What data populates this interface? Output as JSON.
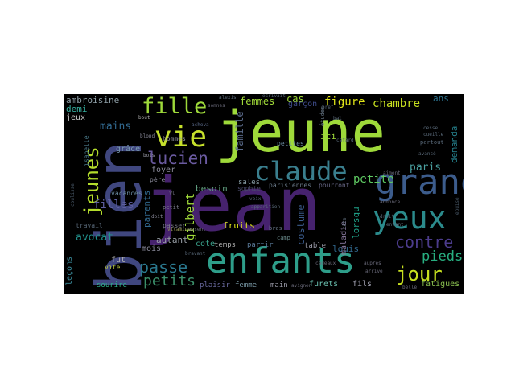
{
  "wordcloud": {
    "words": [
      {
        "text": "jeune",
        "color": "#9ed93a"
      },
      {
        "text": "jean",
        "color": "#46226e"
      },
      {
        "text": "bien",
        "color": "#40477f"
      },
      {
        "text": "enfants",
        "color": "#2e9e8a"
      },
      {
        "text": "grand",
        "color": "#3c5c8c"
      },
      {
        "text": "yeux",
        "color": "#2b8b8c"
      },
      {
        "text": "vie",
        "color": "#c6e02c"
      },
      {
        "text": "claude",
        "color": "#3a7f8e"
      },
      {
        "text": "fille",
        "color": "#9ed93a"
      },
      {
        "text": "jour",
        "color": "#c7e020"
      },
      {
        "text": "lucien",
        "color": "#6a5aa0"
      },
      {
        "text": "jeunes",
        "color": "#b4dd2c"
      },
      {
        "text": "contre",
        "color": "#4c3c8c"
      },
      {
        "text": "petite",
        "color": "#5ec962"
      },
      {
        "text": "passe",
        "color": "#2a788e"
      },
      {
        "text": "petits",
        "color": "#3b8f6a"
      },
      {
        "text": "pieds",
        "color": "#28ae80"
      },
      {
        "text": "chambre",
        "color": "#c7e020"
      },
      {
        "text": "figure",
        "color": "#e0e418"
      },
      {
        "text": "femmes",
        "color": "#a0da39"
      },
      {
        "text": "mains",
        "color": "#31688e"
      },
      {
        "text": "filles",
        "color": "#5e5fa0"
      },
      {
        "text": "avocat",
        "color": "#21918c"
      },
      {
        "text": "gilbert",
        "color": "#a0da39"
      },
      {
        "text": "paris",
        "color": "#4aa0a0"
      },
      {
        "text": "demanda",
        "color": "#26828e"
      },
      {
        "text": "ambroisine",
        "color": "#8fa0a8"
      },
      {
        "text": "demi",
        "color": "#37b0a0"
      },
      {
        "text": "jeux",
        "color": "#d0d0d0"
      },
      {
        "text": "cas",
        "color": "#a0da39"
      },
      {
        "text": "garçon",
        "color": "#3e4c8a"
      },
      {
        "text": "ans",
        "color": "#2c728e"
      },
      {
        "text": "famille",
        "color": "#5a6a8a"
      },
      {
        "text": "ici",
        "color": "#9ed93a"
      },
      {
        "text": "lorsqu",
        "color": "#1fa188"
      },
      {
        "text": "costume",
        "color": "#3a5a8a"
      },
      {
        "text": "louis",
        "color": "#31688e"
      },
      {
        "text": "besoin",
        "color": "#62a080"
      },
      {
        "text": "parents",
        "color": "#31688e"
      },
      {
        "text": "autant",
        "color": "#9aa0a8"
      },
      {
        "text": "fruits",
        "color": "#dde318"
      },
      {
        "text": "cote",
        "color": "#3aa08a"
      },
      {
        "text": "mois",
        "color": "#8a8a9a"
      },
      {
        "text": "fut",
        "color": "#b0b0b0"
      },
      {
        "text": "vite",
        "color": "#c0d040"
      },
      {
        "text": "leçons",
        "color": "#3a8a9a"
      },
      {
        "text": "sourire",
        "color": "#2db08a"
      },
      {
        "text": "plaisir",
        "color": "#6a6aa0"
      },
      {
        "text": "femme",
        "color": "#7a9aa8"
      },
      {
        "text": "main",
        "color": "#9a9aa8"
      },
      {
        "text": "furets",
        "color": "#6ac0b0"
      },
      {
        "text": "fils",
        "color": "#a0a0b0"
      },
      {
        "text": "fatigues",
        "color": "#8ac050"
      },
      {
        "text": "maladie",
        "color": "#8a7aa0"
      },
      {
        "text": "table",
        "color": "#9a9aa8"
      },
      {
        "text": "temps",
        "color": "#aaaaaa"
      },
      {
        "text": "partir",
        "color": "#5a7a9a"
      },
      {
        "text": "foyer",
        "color": "#8a8a9a"
      },
      {
        "text": "grâce",
        "color": "#7a9ab0"
      },
      {
        "text": "hommes",
        "color": "#9a9aa8"
      },
      {
        "text": "petites",
        "color": "#6a8aa0"
      },
      {
        "text": "sales",
        "color": "#8aa0a8"
      },
      {
        "text": "isabelle",
        "color": "#4a7a8a"
      },
      {
        "text": "père",
        "color": "#8a8a9a"
      },
      {
        "text": "vacances",
        "color": "#6a8aa0"
      },
      {
        "text": "petit",
        "color": "#7a7a8a"
      },
      {
        "text": "travail",
        "color": "#5a6a7a"
      },
      {
        "text": "passer",
        "color": "#7a7a8a"
      },
      {
        "text": "parisiennes",
        "color": "#6a7a8a"
      },
      {
        "text": "pourront",
        "color": "#6a6a8a"
      },
      {
        "text": "sophie",
        "color": "#4a4a6a"
      },
      {
        "text": "camp",
        "color": "#6a8a8a"
      },
      {
        "text": "apparition",
        "color": "#5a6a7a"
      },
      {
        "text": "bras",
        "color": "#6a7a8a"
      },
      {
        "text": "vitamines",
        "color": "#9a9a5a"
      },
      {
        "text": "absent",
        "color": "#6a6a7a"
      },
      {
        "text": "avignon",
        "color": "#6a6a7a"
      },
      {
        "text": "somnes",
        "color": "#6a6a7a"
      },
      {
        "text": "acheva",
        "color": "#5a6a8a"
      },
      {
        "text": "blond",
        "color": "#8a8a9a"
      },
      {
        "text": "bois",
        "color": "#9a9aa8"
      },
      {
        "text": "bout",
        "color": "#aaaaaa"
      },
      {
        "text": "doit",
        "color": "#8a8a9a"
      },
      {
        "text": "études",
        "color": "#6a7a8a"
      },
      {
        "text": "cafard",
        "color": "#5a6a7a"
      },
      {
        "text": "partout",
        "color": "#5a6a7a"
      },
      {
        "text": "tête",
        "color": "#6a7a8a"
      },
      {
        "text": "auprès",
        "color": "#6a6a7a"
      },
      {
        "text": "arrive",
        "color": "#6a6a7a"
      },
      {
        "text": "annonce",
        "color": "#6a6a7a"
      },
      {
        "text": "alexis",
        "color": "#5a6a7a"
      },
      {
        "text": "écrivait",
        "color": "#5a6a7a"
      },
      {
        "text": "belle",
        "color": "#6a6a7a"
      },
      {
        "text": "bref",
        "color": "#5a6a7a"
      },
      {
        "text": "bal",
        "color": "#5a6a7a"
      },
      {
        "text": "avancé",
        "color": "#5a6a7a"
      },
      {
        "text": "voix",
        "color": "#5a6a7a"
      },
      {
        "text": "aiment",
        "color": "#6a6a7a"
      },
      {
        "text": "cesse",
        "color": "#5a6a7a"
      },
      {
        "text": "cueille",
        "color": "#5a6a7a"
      },
      {
        "text": "vu",
        "color": "#6a6a7a"
      },
      {
        "text": "droit",
        "color": "#5a6a7a"
      },
      {
        "text": "enfant",
        "color": "#5a6a7a"
      },
      {
        "text": "cadeaux",
        "color": "#6a6a7a"
      },
      {
        "text": "bravant",
        "color": "#5a6a7a"
      },
      {
        "text": "coulisse",
        "color": "#4a5a6a"
      },
      {
        "text": "épuisé",
        "color": "#4a5a6a"
      }
    ]
  }
}
